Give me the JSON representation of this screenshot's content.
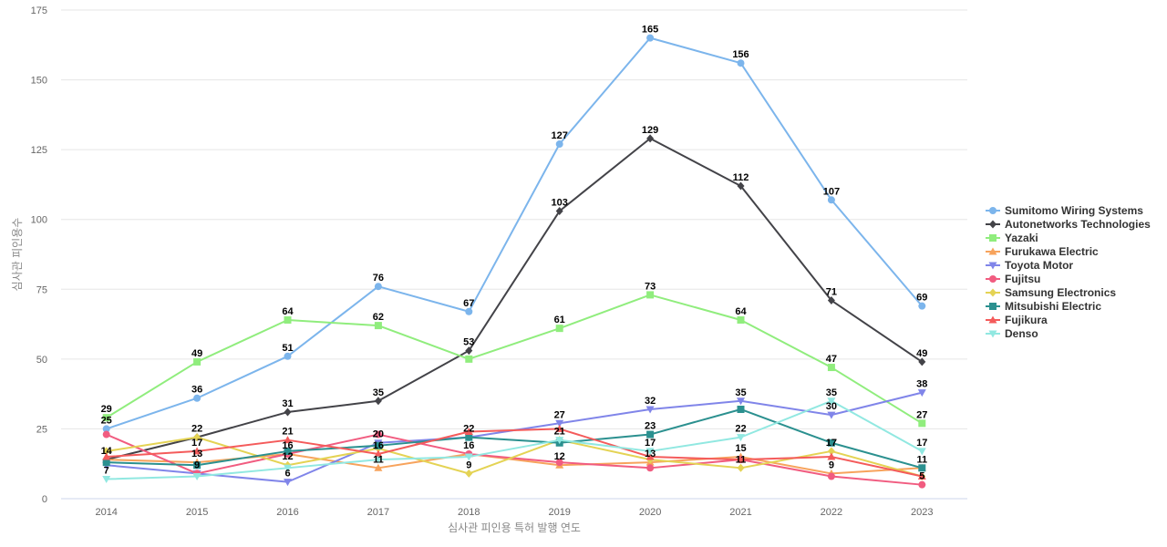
{
  "chart_data": {
    "type": "line",
    "title": "",
    "xlabel": "심사관 피인용 특허 발행 연도",
    "ylabel": "심사관 피인용수",
    "x": [
      "2014",
      "2015",
      "2016",
      "2017",
      "2018",
      "2019",
      "2020",
      "2021",
      "2022",
      "2023"
    ],
    "ylim": [
      0,
      175
    ],
    "yticks": [
      0,
      25,
      50,
      75,
      100,
      125,
      150,
      175
    ],
    "grid": true,
    "legend_position": "right",
    "series": [
      {
        "name": "Sumitomo Wiring Systems",
        "color": "#7cb5ec",
        "marker": "circle",
        "values": [
          25,
          36,
          51,
          76,
          67,
          127,
          165,
          156,
          107,
          69
        ]
      },
      {
        "name": "Autonetworks Technologies",
        "color": "#434348",
        "marker": "diamond",
        "values": [
          14,
          22,
          31,
          35,
          53,
          103,
          129,
          112,
          71,
          49
        ]
      },
      {
        "name": "Yazaki",
        "color": "#90ed7d",
        "marker": "square",
        "values": [
          29,
          49,
          64,
          62,
          50,
          61,
          73,
          64,
          47,
          27
        ]
      },
      {
        "name": "Furukawa Electric",
        "color": "#f7a35c",
        "marker": "triangle",
        "values": [
          14,
          13,
          16,
          11,
          16,
          12,
          13,
          15,
          9,
          11
        ]
      },
      {
        "name": "Toyota Motor",
        "color": "#8085e9",
        "marker": "triangle-down",
        "values": [
          12,
          9,
          6,
          20,
          22,
          27,
          32,
          35,
          30,
          38
        ]
      },
      {
        "name": "Fujitsu",
        "color": "#f15c80",
        "marker": "circle",
        "values": [
          23,
          9,
          16,
          23,
          16,
          13,
          11,
          14,
          8,
          5
        ]
      },
      {
        "name": "Samsung Electronics",
        "color": "#e4d354",
        "marker": "diamond",
        "values": [
          17,
          22,
          12,
          18,
          9,
          21,
          14,
          11,
          17,
          8
        ]
      },
      {
        "name": "Mitsubishi Electric",
        "color": "#2b908f",
        "marker": "square",
        "values": [
          13,
          12,
          17,
          19,
          22,
          20,
          23,
          32,
          20,
          11
        ]
      },
      {
        "name": "Fujikura",
        "color": "#f45b5b",
        "marker": "triangle",
        "values": [
          15,
          17,
          21,
          16,
          24,
          25,
          15,
          14,
          15,
          8
        ]
      },
      {
        "name": "Denso",
        "color": "#91e8e1",
        "marker": "triangle-down",
        "values": [
          7,
          8,
          11,
          14,
          15,
          21,
          17,
          22,
          35,
          17
        ]
      }
    ],
    "data_labels": [
      {
        "x": "2014",
        "text": "29",
        "y": 29
      },
      {
        "x": "2014",
        "text": "25",
        "y": 25
      },
      {
        "x": "2014",
        "text": "14",
        "y": 14
      },
      {
        "x": "2014",
        "text": "7",
        "y": 7
      },
      {
        "x": "2015",
        "text": "49",
        "y": 49
      },
      {
        "x": "2015",
        "text": "36",
        "y": 36
      },
      {
        "x": "2015",
        "text": "22",
        "y": 22
      },
      {
        "x": "2015",
        "text": "17",
        "y": 17
      },
      {
        "x": "2015",
        "text": "13",
        "y": 13
      },
      {
        "x": "2015",
        "text": "9",
        "y": 9
      },
      {
        "x": "2016",
        "text": "64",
        "y": 64
      },
      {
        "x": "2016",
        "text": "51",
        "y": 51
      },
      {
        "x": "2016",
        "text": "31",
        "y": 31
      },
      {
        "x": "2016",
        "text": "21",
        "y": 21
      },
      {
        "x": "2016",
        "text": "16",
        "y": 16
      },
      {
        "x": "2016",
        "text": "12",
        "y": 12
      },
      {
        "x": "2016",
        "text": "6",
        "y": 6
      },
      {
        "x": "2017",
        "text": "76",
        "y": 76
      },
      {
        "x": "2017",
        "text": "62",
        "y": 62
      },
      {
        "x": "2017",
        "text": "35",
        "y": 35
      },
      {
        "x": "2017",
        "text": "20",
        "y": 20
      },
      {
        "x": "2017",
        "text": "16",
        "y": 16
      },
      {
        "x": "2017",
        "text": "11",
        "y": 11
      },
      {
        "x": "2018",
        "text": "67",
        "y": 67
      },
      {
        "x": "2018",
        "text": "53",
        "y": 53
      },
      {
        "x": "2018",
        "text": "22",
        "y": 22
      },
      {
        "x": "2018",
        "text": "16",
        "y": 16
      },
      {
        "x": "2018",
        "text": "9",
        "y": 9
      },
      {
        "x": "2019",
        "text": "127",
        "y": 127
      },
      {
        "x": "2019",
        "text": "103",
        "y": 103
      },
      {
        "x": "2019",
        "text": "61",
        "y": 61
      },
      {
        "x": "2019",
        "text": "27",
        "y": 27
      },
      {
        "x": "2019",
        "text": "21",
        "y": 21
      },
      {
        "x": "2019",
        "text": "12",
        "y": 12
      },
      {
        "x": "2020",
        "text": "165",
        "y": 165
      },
      {
        "x": "2020",
        "text": "129",
        "y": 129
      },
      {
        "x": "2020",
        "text": "73",
        "y": 73
      },
      {
        "x": "2020",
        "text": "32",
        "y": 32
      },
      {
        "x": "2020",
        "text": "23",
        "y": 23
      },
      {
        "x": "2020",
        "text": "17",
        "y": 17
      },
      {
        "x": "2020",
        "text": "13",
        "y": 13
      },
      {
        "x": "2021",
        "text": "156",
        "y": 156
      },
      {
        "x": "2021",
        "text": "112",
        "y": 112
      },
      {
        "x": "2021",
        "text": "64",
        "y": 64
      },
      {
        "x": "2021",
        "text": "35",
        "y": 35
      },
      {
        "x": "2021",
        "text": "22",
        "y": 22
      },
      {
        "x": "2021",
        "text": "15",
        "y": 15
      },
      {
        "x": "2021",
        "text": "11",
        "y": 11
      },
      {
        "x": "2022",
        "text": "107",
        "y": 107
      },
      {
        "x": "2022",
        "text": "71",
        "y": 71
      },
      {
        "x": "2022",
        "text": "47",
        "y": 47
      },
      {
        "x": "2022",
        "text": "35",
        "y": 35
      },
      {
        "x": "2022",
        "text": "30",
        "y": 30
      },
      {
        "x": "2022",
        "text": "17",
        "y": 17
      },
      {
        "x": "2022",
        "text": "9",
        "y": 9
      },
      {
        "x": "2023",
        "text": "69",
        "y": 69
      },
      {
        "x": "2023",
        "text": "49",
        "y": 49
      },
      {
        "x": "2023",
        "text": "38",
        "y": 38
      },
      {
        "x": "2023",
        "text": "27",
        "y": 27
      },
      {
        "x": "2023",
        "text": "17",
        "y": 17
      },
      {
        "x": "2023",
        "text": "11",
        "y": 11
      },
      {
        "x": "2023",
        "text": "5",
        "y": 5
      }
    ]
  }
}
